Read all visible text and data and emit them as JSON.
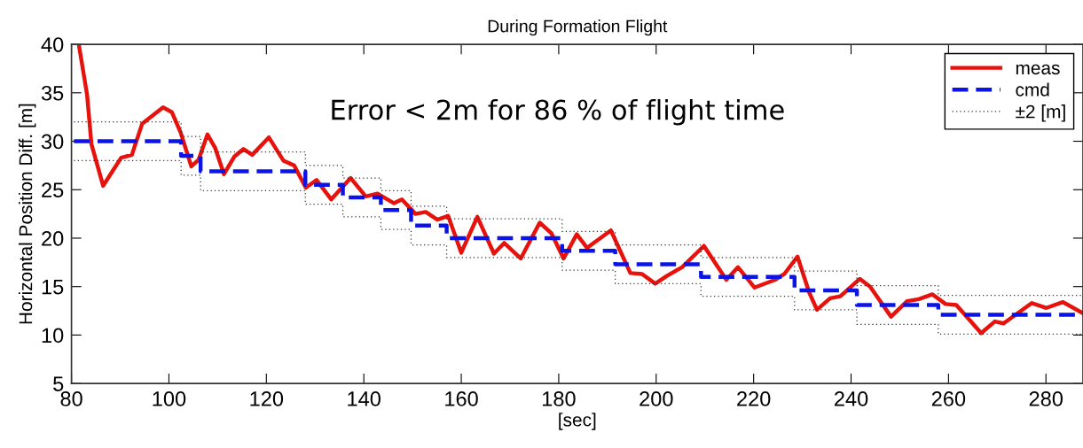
{
  "chart_data": {
    "type": "line",
    "title": "During Formation Flight",
    "xlabel": "[sec]",
    "ylabel": "Horizontal Position Diff. [m]",
    "annotations": [
      "Error < 2m for 86 % of flight time"
    ],
    "xlim": [
      80,
      287.6
    ],
    "xticks": [
      80,
      100,
      120,
      140,
      160,
      180,
      200,
      220,
      240,
      260,
      280
    ],
    "ylim": [
      5,
      40
    ],
    "yticks": [
      5,
      10,
      15,
      20,
      25,
      30,
      35,
      40
    ],
    "grid": false,
    "legend": "top right",
    "series": [
      {
        "name": "meas",
        "color": "#e8120c",
        "line_style": "solid",
        "x": [
          81.5,
          83.2,
          84.1,
          86.5,
          88.4,
          90.2,
          92.4,
          94.5,
          98.8,
          100.6,
          102.4,
          104.6,
          106.1,
          107.9,
          109.5,
          111.3,
          113.4,
          115.3,
          117.1,
          120.5,
          123.5,
          125.7,
          128.1,
          130.3,
          133.3,
          137.3,
          140.4,
          142.8,
          146.2,
          147.8,
          150.6,
          152.7,
          155.1,
          157.3,
          160,
          163.3,
          166.7,
          168.8,
          172.2,
          176.1,
          178.5,
          181.0,
          183.7,
          185.8,
          190.7,
          194.7,
          197.1,
          199.8,
          202.2,
          205.3,
          209.8,
          214.4,
          216.8,
          220.2,
          224.4,
          226.3,
          229.0,
          231.4,
          233.0,
          235.7,
          237.8,
          241.8,
          243.9,
          248.2,
          251.5,
          253.9,
          256.7,
          259.4,
          261.6,
          266.7,
          269.5,
          271.3,
          277.1,
          280.1,
          283.5,
          287.4
        ],
        "values": [
          40,
          34.8,
          29.7,
          25.4,
          26.9,
          28.3,
          28.6,
          31.8,
          33.5,
          33.0,
          30.9,
          27.4,
          28.1,
          30.7,
          29.3,
          26.6,
          28.4,
          29.2,
          28.6,
          30.4,
          28.0,
          27.5,
          25.2,
          26.0,
          24.0,
          26.2,
          24.3,
          24.6,
          23.6,
          24.0,
          22.5,
          22.7,
          21.9,
          22.3,
          18.5,
          22.2,
          18.4,
          19.5,
          17.9,
          21.6,
          20.5,
          17.9,
          20.4,
          19.0,
          20.8,
          16.4,
          16.3,
          15.3,
          16.1,
          17.0,
          19.2,
          15.7,
          17.0,
          14.9,
          15.7,
          16.3,
          18.1,
          14.4,
          12.6,
          13.8,
          14.0,
          15.8,
          15.0,
          11.9,
          13.5,
          13.7,
          14.2,
          13.2,
          13.1,
          10.2,
          11.4,
          11.2,
          13.3,
          12.8,
          13.4,
          12.3
        ]
      },
      {
        "name": "cmd",
        "type": "step",
        "color": "#0a14e6",
        "line_style": "dashed",
        "x": [
          80.5,
          102.5,
          106.5,
          128,
          135.7,
          143.5,
          149.7,
          157,
          180.7,
          191.6,
          209.2,
          228.4,
          241.2,
          257.9,
          287.6
        ],
        "values": [
          30,
          28.5,
          26.9,
          25.5,
          24.2,
          22.9,
          21.3,
          20.0,
          18.7,
          17.3,
          16.0,
          14.6,
          13.1,
          12.1,
          12.1
        ]
      },
      {
        "name": "±2 [m]",
        "type": "step",
        "color": "#333333",
        "line_style": "dotted",
        "x": [
          80.5,
          102.5,
          106.5,
          128,
          135.7,
          143.5,
          149.7,
          157,
          180.7,
          191.6,
          209.2,
          228.4,
          241.2,
          257.9,
          287.6
        ],
        "values": [
          32,
          30.5,
          28.9,
          27.5,
          26.2,
          24.9,
          23.3,
          22.0,
          20.7,
          19.3,
          18.0,
          16.6,
          15.1,
          14.1,
          14.1
        ]
      },
      {
        "type": "step",
        "color": "#333333",
        "line_style": "dotted",
        "x": [
          80.5,
          102.5,
          106.5,
          128,
          135.7,
          143.5,
          149.7,
          157,
          180.7,
          191.6,
          209.2,
          228.4,
          241.2,
          257.9,
          287.6
        ],
        "values": [
          28,
          26.5,
          24.9,
          23.5,
          22.2,
          20.9,
          19.3,
          18.0,
          16.7,
          15.3,
          14.0,
          12.6,
          11.1,
          10.1,
          10.1
        ]
      }
    ]
  }
}
